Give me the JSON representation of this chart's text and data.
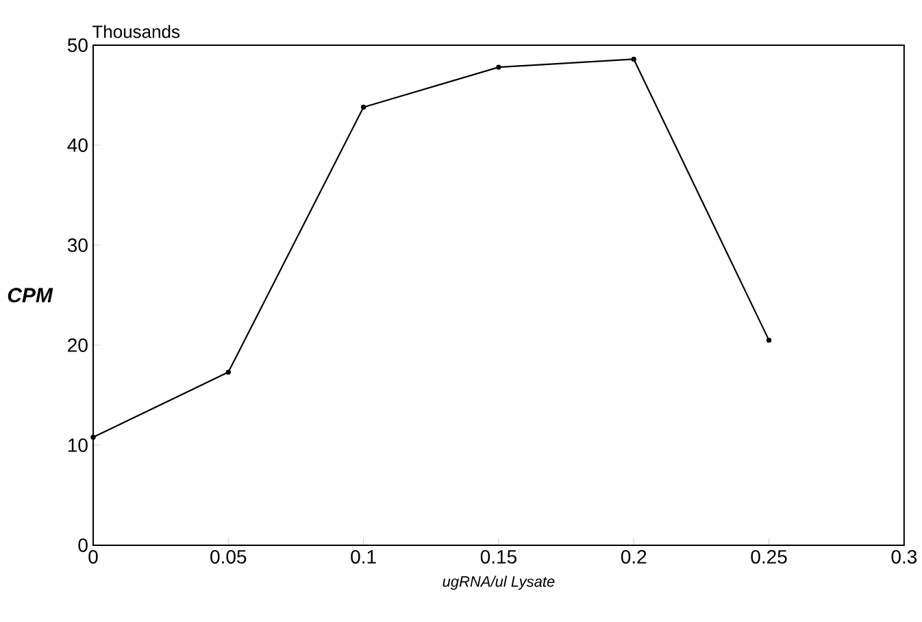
{
  "chart_data": {
    "type": "line",
    "x": [
      0,
      0.05,
      0.1,
      0.15,
      0.2,
      0.25
    ],
    "series": [
      {
        "color": "#000000",
        "values": [
          10.8,
          17.3,
          43.8,
          47.8,
          48.6,
          20.5
        ]
      }
    ],
    "xlabel": "ugRNA/ul Lysate",
    "ylabel": "CPM",
    "annotations": [
      "Thousands"
    ],
    "xlim": [
      0,
      0.3
    ],
    "ylim": [
      0,
      50
    ],
    "xticks": [
      0,
      0.05,
      0.1,
      0.15,
      0.2,
      0.25,
      0.3
    ],
    "yticks": [
      0,
      10,
      20,
      30,
      40,
      50
    ],
    "grid": false,
    "marker": "circle",
    "line_style": "solid"
  }
}
